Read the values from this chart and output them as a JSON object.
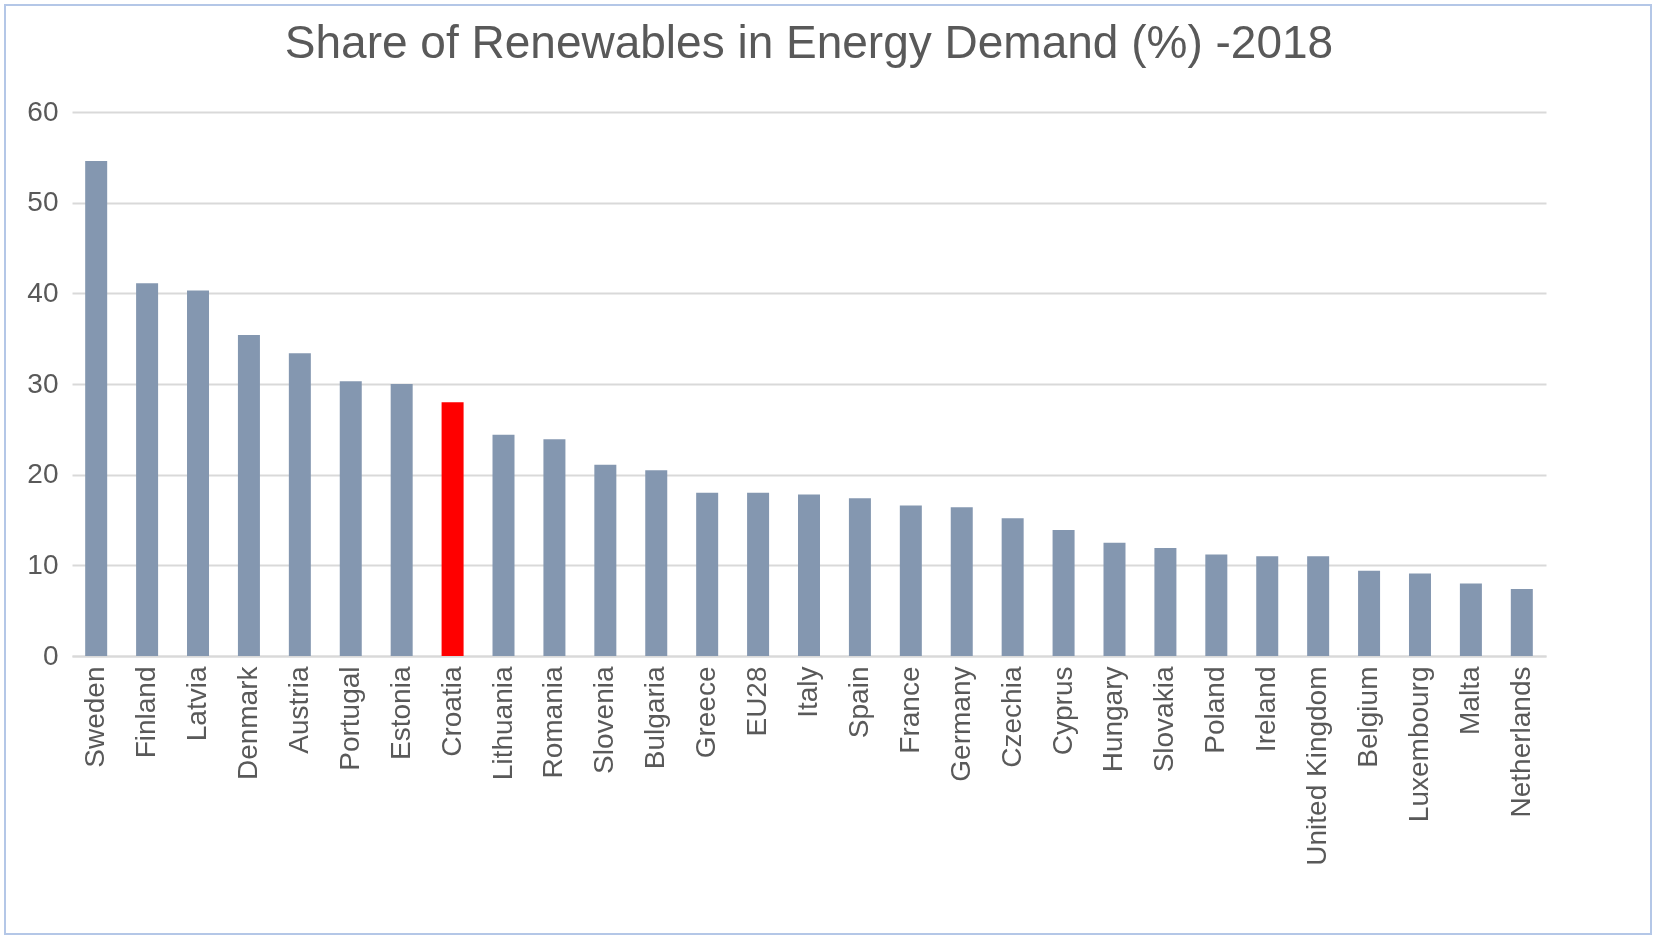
{
  "chart_data": {
    "type": "bar",
    "title": "Share of Renewables in Energy Demand (%) -2018",
    "categories": [
      "Sweden",
      "Finland",
      "Latvia",
      "Denmark",
      "Austria",
      "Portugal",
      "Estonia",
      "Croatia",
      "Lithuania",
      "Romania",
      "Slovenia",
      "Bulgaria",
      "Greece",
      "EU28",
      "Italy",
      "Spain",
      "France",
      "Germany",
      "Czechia",
      "Cyprus",
      "Hungary",
      "Slovakia",
      "Poland",
      "Ireland",
      "United Kingdom",
      "Belgium",
      "Luxembourg",
      "Malta",
      "Netherlands"
    ],
    "values": [
      54.6,
      41.1,
      40.3,
      35.4,
      33.4,
      30.3,
      30.0,
      28.0,
      24.4,
      23.9,
      21.1,
      20.5,
      18.0,
      18.0,
      17.8,
      17.4,
      16.6,
      16.4,
      15.2,
      13.9,
      12.5,
      11.9,
      11.2,
      11.0,
      11.0,
      9.4,
      9.1,
      8.0,
      7.4
    ],
    "colors": [
      "#8497b0",
      "#8497b0",
      "#8497b0",
      "#8497b0",
      "#8497b0",
      "#8497b0",
      "#8497b0",
      "#ff0000",
      "#8497b0",
      "#8497b0",
      "#8497b0",
      "#8497b0",
      "#8497b0",
      "#8497b0",
      "#8497b0",
      "#8497b0",
      "#8497b0",
      "#8497b0",
      "#8497b0",
      "#8497b0",
      "#8497b0",
      "#8497b0",
      "#8497b0",
      "#8497b0",
      "#8497b0",
      "#8497b0",
      "#8497b0",
      "#8497b0",
      "#8497b0"
    ],
    "ylim": [
      0,
      60
    ],
    "yticks": [
      0,
      10,
      20,
      30,
      40,
      50,
      60
    ],
    "grid": "y"
  }
}
